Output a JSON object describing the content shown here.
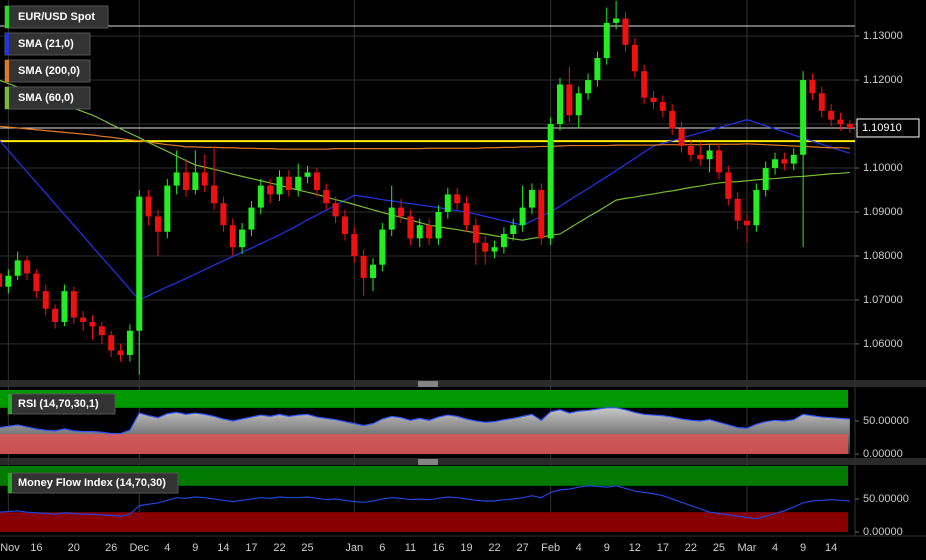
{
  "chart_data": [
    {
      "type": "candlestick",
      "title": "EUR/USD Spot",
      "title_color": "#22dd22",
      "up_color": "#22ee22",
      "down_color": "#ee1111",
      "categories": [
        null,
        "Nov",
        null,
        null,
        "16",
        null,
        null,
        null,
        "20",
        null,
        null,
        null,
        "26",
        null,
        null,
        "Dec",
        null,
        null,
        "4",
        null,
        null,
        "9",
        null,
        null,
        "14",
        null,
        null,
        "17",
        null,
        null,
        "22",
        null,
        null,
        "25",
        null,
        null,
        null,
        null,
        "Jan",
        null,
        null,
        "6",
        null,
        null,
        "11",
        null,
        null,
        "16",
        null,
        null,
        "19",
        null,
        null,
        "22",
        null,
        null,
        "27",
        null,
        null,
        "Feb",
        null,
        null,
        "4",
        null,
        null,
        "9",
        null,
        null,
        "12",
        null,
        null,
        "17",
        null,
        null,
        "22",
        null,
        null,
        "25",
        null,
        null,
        "Mar",
        null,
        null,
        "4",
        null,
        null,
        "9",
        null,
        null,
        "14",
        null,
        null
      ],
      "open": [
        1.076,
        1.073,
        1.0755,
        1.079,
        1.076,
        1.072,
        1.068,
        1.065,
        1.072,
        1.066,
        1.065,
        1.064,
        1.062,
        1.0585,
        1.0575,
        1.063,
        1.0935,
        1.089,
        1.0855,
        1.096,
        1.099,
        1.095,
        1.099,
        1.096,
        1.092,
        1.087,
        1.082,
        1.086,
        1.091,
        1.096,
        1.094,
        1.098,
        1.095,
        1.098,
        1.099,
        1.095,
        1.092,
        1.089,
        1.085,
        1.08,
        1.075,
        1.078,
        1.086,
        1.091,
        1.089,
        1.084,
        1.087,
        1.084,
        1.09,
        1.094,
        1.092,
        1.087,
        1.083,
        1.081,
        1.082,
        1.085,
        1.087,
        1.091,
        1.095,
        1.084,
        1.11,
        1.119,
        1.112,
        1.117,
        1.12,
        1.125,
        1.133,
        1.134,
        1.128,
        1.122,
        1.116,
        1.115,
        1.113,
        1.109,
        1.105,
        1.103,
        1.102,
        1.104,
        1.099,
        1.093,
        1.088,
        1.087,
        1.095,
        1.1,
        1.102,
        1.101,
        1.103,
        1.12,
        1.117,
        1.113,
        1.111,
        1.11
      ],
      "high": [
        1.079,
        1.077,
        1.081,
        1.08,
        1.077,
        1.0735,
        1.069,
        1.0735,
        1.073,
        1.0675,
        1.0665,
        1.065,
        1.063,
        1.06,
        1.0645,
        1.095,
        1.095,
        1.0905,
        1.0975,
        1.104,
        1.102,
        1.104,
        1.103,
        1.105,
        1.0935,
        1.0885,
        1.0875,
        1.0925,
        1.0975,
        1.0975,
        1.0995,
        1.0995,
        1.101,
        1.1005,
        1.1,
        1.0965,
        1.0935,
        1.0905,
        1.0865,
        1.0815,
        1.0795,
        1.0875,
        1.096,
        1.093,
        1.0905,
        1.0885,
        1.0885,
        1.0915,
        1.0955,
        1.0955,
        1.0935,
        1.0885,
        1.0845,
        1.0835,
        1.0865,
        1.0885,
        1.096,
        1.0965,
        1.0965,
        1.1115,
        1.1205,
        1.123,
        1.1185,
        1.1215,
        1.1265,
        1.1365,
        1.138,
        1.1355,
        1.1295,
        1.1235,
        1.1175,
        1.1165,
        1.1145,
        1.1105,
        1.1065,
        1.106,
        1.1055,
        1.1055,
        1.1005,
        1.0945,
        1.0895,
        1.0965,
        1.1015,
        1.1035,
        1.1035,
        1.1045,
        1.122,
        1.1215,
        1.1185,
        1.1145,
        1.1125,
        1.111
      ],
      "low": [
        1.0715,
        1.0715,
        1.0745,
        1.0745,
        1.0705,
        1.0665,
        1.0635,
        1.064,
        1.0645,
        1.063,
        1.061,
        1.06,
        1.057,
        1.056,
        1.056,
        1.053,
        1.087,
        1.08,
        1.084,
        1.094,
        1.0935,
        1.094,
        1.0945,
        1.0905,
        1.0855,
        1.08,
        1.0805,
        1.0845,
        1.0895,
        1.092,
        1.0925,
        1.0935,
        1.0935,
        1.0965,
        1.0935,
        1.0905,
        1.0875,
        1.0835,
        1.0785,
        1.071,
        1.072,
        1.0765,
        1.0845,
        1.0875,
        1.0825,
        1.082,
        1.0825,
        1.0825,
        1.0885,
        1.0905,
        1.0855,
        1.078,
        1.078,
        1.0795,
        1.0805,
        1.0835,
        1.0855,
        1.0895,
        1.0825,
        1.0825,
        1.1085,
        1.1105,
        1.109,
        1.1155,
        1.1185,
        1.1235,
        1.1315,
        1.1265,
        1.1205,
        1.1145,
        1.1135,
        1.1115,
        1.1075,
        1.1035,
        1.1015,
        1.1005,
        1.099,
        1.0975,
        1.0915,
        1.086,
        1.083,
        1.0855,
        1.0935,
        1.0985,
        1.0995,
        1.0995,
        1.082,
        1.1155,
        1.1115,
        1.1095,
        1.1085,
        1.108
      ],
      "close": [
        1.073,
        1.0755,
        1.079,
        1.076,
        1.072,
        1.068,
        1.065,
        1.072,
        1.066,
        1.065,
        1.064,
        1.062,
        1.0585,
        1.0575,
        1.063,
        1.0935,
        1.089,
        1.0855,
        1.096,
        1.099,
        1.095,
        1.099,
        1.096,
        1.092,
        1.087,
        1.082,
        1.086,
        1.091,
        1.096,
        1.094,
        1.098,
        1.095,
        1.098,
        1.099,
        1.095,
        1.092,
        1.089,
        1.085,
        1.08,
        1.075,
        1.078,
        1.086,
        1.091,
        1.089,
        1.084,
        1.087,
        1.084,
        1.09,
        1.094,
        1.092,
        1.087,
        1.083,
        1.081,
        1.082,
        1.085,
        1.087,
        1.091,
        1.095,
        1.084,
        1.11,
        1.119,
        1.112,
        1.117,
        1.12,
        1.125,
        1.133,
        1.134,
        1.128,
        1.122,
        1.116,
        1.115,
        1.113,
        1.109,
        1.105,
        1.103,
        1.102,
        1.104,
        1.099,
        1.093,
        1.088,
        1.087,
        1.095,
        1.1,
        1.102,
        1.101,
        1.103,
        1.12,
        1.117,
        1.113,
        1.111,
        1.11,
        1.1091
      ],
      "series": [
        {
          "name": "SMA (21,0)",
          "color": "#2233ee",
          "values": [
            1.1064,
            1.104,
            1.1015,
            1.0991,
            1.0967,
            1.0943,
            1.0918,
            1.0894,
            1.087,
            1.0846,
            1.0821,
            1.0797,
            1.0773,
            1.0749,
            1.0724,
            1.07,
            1.071,
            1.072,
            1.073,
            1.0739,
            1.0749,
            1.0759,
            1.0769,
            1.0779,
            1.0789,
            1.0799,
            1.0808,
            1.0818,
            1.0828,
            1.0838,
            1.0848,
            1.0859,
            1.087,
            1.0882,
            1.0893,
            1.0904,
            1.0915,
            1.0927,
            1.0938,
            1.0935,
            1.0932,
            1.0928,
            1.0925,
            1.0922,
            1.0919,
            1.0916,
            1.0913,
            1.091,
            1.0906,
            1.0903,
            1.09,
            1.0895,
            1.089,
            1.0885,
            1.088,
            1.0875,
            1.087,
            1.088,
            1.089,
            1.09,
            1.0913,
            1.0927,
            1.094,
            1.0953,
            1.0967,
            1.098,
            1.0994,
            1.1008,
            1.1022,
            1.1036,
            1.105,
            1.1056,
            1.1062,
            1.1068,
            1.1074,
            1.108,
            1.1086,
            1.1092,
            1.1098,
            1.1104,
            1.111,
            1.1103,
            1.1096,
            1.1089,
            1.1082,
            1.1075,
            1.1068,
            1.1061,
            1.1054,
            1.1047,
            1.104,
            1.1034
          ]
        },
        {
          "name": "SMA (200,0)",
          "color": "#e07a20",
          "values": [
            1.1095,
            1.1093,
            1.1091,
            1.1089,
            1.1087,
            1.1085,
            1.1083,
            1.1081,
            1.1079,
            1.1077,
            1.1075,
            1.1072,
            1.107,
            1.1067,
            1.1064,
            1.1062,
            1.1059,
            1.1056,
            1.1053,
            1.1051,
            1.1048,
            1.1048,
            1.1047,
            1.1047,
            1.1046,
            1.1046,
            1.1045,
            1.1045,
            1.1044,
            1.1044,
            1.1043,
            1.1043,
            1.1043,
            1.1043,
            1.1043,
            1.1043,
            1.1044,
            1.1044,
            1.1044,
            1.1044,
            1.1044,
            1.1044,
            1.1044,
            1.1044,
            1.1044,
            1.1044,
            1.1045,
            1.1045,
            1.1045,
            1.1045,
            1.1045,
            1.1045,
            1.1046,
            1.1046,
            1.1047,
            1.1047,
            1.1048,
            1.1048,
            1.1049,
            1.1049,
            1.105,
            1.1051,
            1.1051,
            1.1051,
            1.1051,
            1.1051,
            1.1052,
            1.1052,
            1.1052,
            1.1052,
            1.1052,
            1.1053,
            1.1053,
            1.1053,
            1.1053,
            1.1053,
            1.1054,
            1.1054,
            1.1054,
            1.1054,
            1.1055,
            1.1054,
            1.1053,
            1.1052,
            1.1051,
            1.105,
            1.1049,
            1.1048,
            1.1047,
            1.1046,
            1.1046,
            1.1045
          ]
        },
        {
          "name": "SMA (60,0)",
          "color": "#77bb33",
          "values": [
            1.12,
            1.1192,
            1.1184,
            1.1176,
            1.1168,
            1.116,
            1.1152,
            1.1144,
            1.1136,
            1.1128,
            1.112,
            1.111,
            1.1099,
            1.1089,
            1.1079,
            1.1069,
            1.1058,
            1.1048,
            1.1038,
            1.1027,
            1.1017,
            1.1007,
            1.1002,
            1.0997,
            1.0992,
            1.0986,
            1.0981,
            1.0976,
            1.0971,
            1.0966,
            1.0961,
            1.0955,
            1.095,
            1.0945,
            1.094,
            1.0934,
            1.0928,
            1.0923,
            1.0917,
            1.0911,
            1.0905,
            1.0899,
            1.0893,
            1.0888,
            1.0882,
            1.0876,
            1.087,
            1.0867,
            1.0863,
            1.086,
            1.0856,
            1.0853,
            1.085,
            1.0846,
            1.0843,
            1.0839,
            1.0836,
            1.084,
            1.0843,
            1.0847,
            1.085,
            1.0863,
            1.0876,
            1.0889,
            1.0901,
            1.0914,
            1.0927,
            1.0931,
            1.0934,
            1.0938,
            1.0941,
            1.0945,
            1.0948,
            1.0952,
            1.0956,
            1.0959,
            1.0963,
            1.0966,
            1.0968,
            1.0969,
            1.0971,
            1.0973,
            1.0975,
            1.0976,
            1.0978,
            1.098,
            1.0981,
            1.0983,
            1.0985,
            1.0987,
            1.0988,
            1.099
          ]
        }
      ],
      "ylim": [
        1.0518,
        1.1382
      ],
      "yticks": [
        {
          "value": 1.06,
          "label": "1.06000"
        },
        {
          "value": 1.07,
          "label": "1.07000"
        },
        {
          "value": 1.08,
          "label": "1.08000"
        },
        {
          "value": 1.09,
          "label": "1.09000"
        },
        {
          "value": 1.1,
          "label": "1.10000"
        },
        {
          "value": 1.11,
          "label": "1.11000"
        },
        {
          "value": 1.12,
          "label": "1.12000"
        },
        {
          "value": 1.13,
          "label": "1.13000"
        }
      ],
      "last_price": {
        "value": 1.1091,
        "label": "1.10910"
      },
      "hlines": [
        {
          "value": 1.1323,
          "color": "#dddddd"
        },
        {
          "value": 1.1061,
          "color": "#ffee00"
        }
      ],
      "grid": true
    },
    {
      "type": "area",
      "title": "RSI (14,70,30,1)",
      "color": "#3355ff",
      "values": [
        40,
        42,
        44,
        41,
        38,
        36,
        35,
        38,
        35,
        34,
        34,
        33,
        31,
        31,
        36,
        62,
        58,
        55,
        61,
        63,
        60,
        62,
        60,
        57,
        53,
        50,
        53,
        56,
        59,
        57,
        60,
        57,
        59,
        60,
        56,
        54,
        52,
        49,
        46,
        43,
        46,
        53,
        57,
        55,
        51,
        54,
        51,
        56,
        59,
        57,
        53,
        50,
        48,
        49,
        52,
        54,
        57,
        60,
        51,
        64,
        67,
        62,
        65,
        66,
        68,
        70,
        70,
        67,
        63,
        60,
        59,
        58,
        56,
        53,
        51,
        50,
        52,
        48,
        44,
        40,
        39,
        45,
        49,
        51,
        50,
        52,
        60,
        58,
        56,
        55,
        54,
        53
      ],
      "ylim": [
        0,
        100
      ],
      "yticks": [
        {
          "value": 50,
          "label": "50.00000"
        },
        {
          "value": 0,
          "label": "0.00000"
        }
      ],
      "upper_band": 70,
      "lower_band": 30,
      "upper_color": "#009900",
      "lower_color": "#e05555"
    },
    {
      "type": "line",
      "title": "Money Flow Index (14,70,30)",
      "color": "#2244dd",
      "values": [
        30,
        31,
        32,
        30,
        29,
        28,
        27,
        29,
        28,
        27,
        27,
        26,
        25,
        24,
        27,
        40,
        42,
        44,
        48,
        52,
        51,
        53,
        52,
        50,
        48,
        46,
        48,
        50,
        52,
        51,
        53,
        52,
        52,
        53,
        51,
        49,
        50,
        48,
        46,
        45,
        47,
        50,
        52,
        51,
        49,
        50,
        49,
        51,
        53,
        52,
        50,
        48,
        47,
        47,
        49,
        50,
        52,
        55,
        52,
        60,
        64,
        65,
        68,
        70,
        69,
        68,
        70,
        66,
        62,
        60,
        58,
        55,
        50,
        45,
        40,
        35,
        30,
        28,
        26,
        24,
        22,
        20,
        24,
        28,
        32,
        38,
        44,
        47,
        48,
        49,
        48,
        47
      ],
      "ylim": [
        0,
        100
      ],
      "yticks": [
        {
          "value": 50,
          "label": "50.00000"
        },
        {
          "value": 0,
          "label": "0.00000"
        }
      ],
      "upper_band": 70,
      "lower_band": 30,
      "upper_color": "#007a00",
      "lower_color": "#880000"
    }
  ]
}
